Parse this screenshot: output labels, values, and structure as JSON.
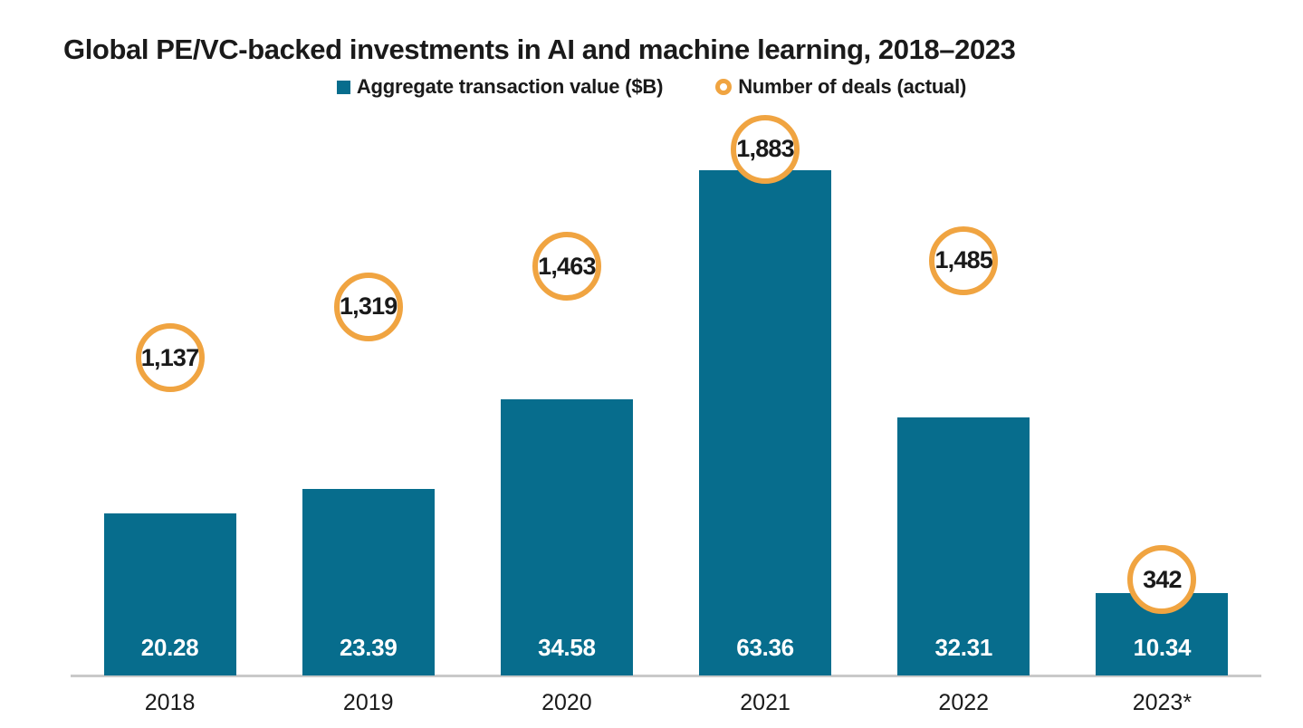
{
  "title": "Global PE/VC-backed investments in AI and machine learning, 2018–2023",
  "legend": {
    "bar_series_label": "Aggregate transaction value ($B)",
    "deals_series_label": "Number of deals (actual)"
  },
  "colors": {
    "bar": "#076d8d",
    "deal_ring": "#f0a441",
    "bar_label_text": "#ffffff",
    "axis_line": "#c9c9c9",
    "text": "#1a1a1a"
  },
  "chart_data": {
    "type": "bar",
    "title": "Global PE/VC-backed investments in AI and machine learning, 2018–2023",
    "categories": [
      "2018",
      "2019",
      "2020",
      "2021",
      "2022",
      "2023*"
    ],
    "series": [
      {
        "name": "Aggregate transaction value ($B)",
        "type": "bar",
        "values": [
          20.28,
          23.39,
          34.58,
          63.36,
          32.31,
          10.34
        ],
        "value_labels": [
          "20.28",
          "23.39",
          "34.58",
          "63.36",
          "32.31",
          "10.34"
        ]
      },
      {
        "name": "Number of deals (actual)",
        "type": "point",
        "values": [
          1137,
          1319,
          1463,
          1883,
          1485,
          342
        ],
        "value_labels": [
          "1,137",
          "1,319",
          "1,463",
          "1,883",
          "1,485",
          "342"
        ]
      }
    ],
    "xlabel": "",
    "ylabel": "",
    "value_axis_hidden": true,
    "grid": false,
    "legend_position": "top-center",
    "footnote_marker": "*"
  }
}
